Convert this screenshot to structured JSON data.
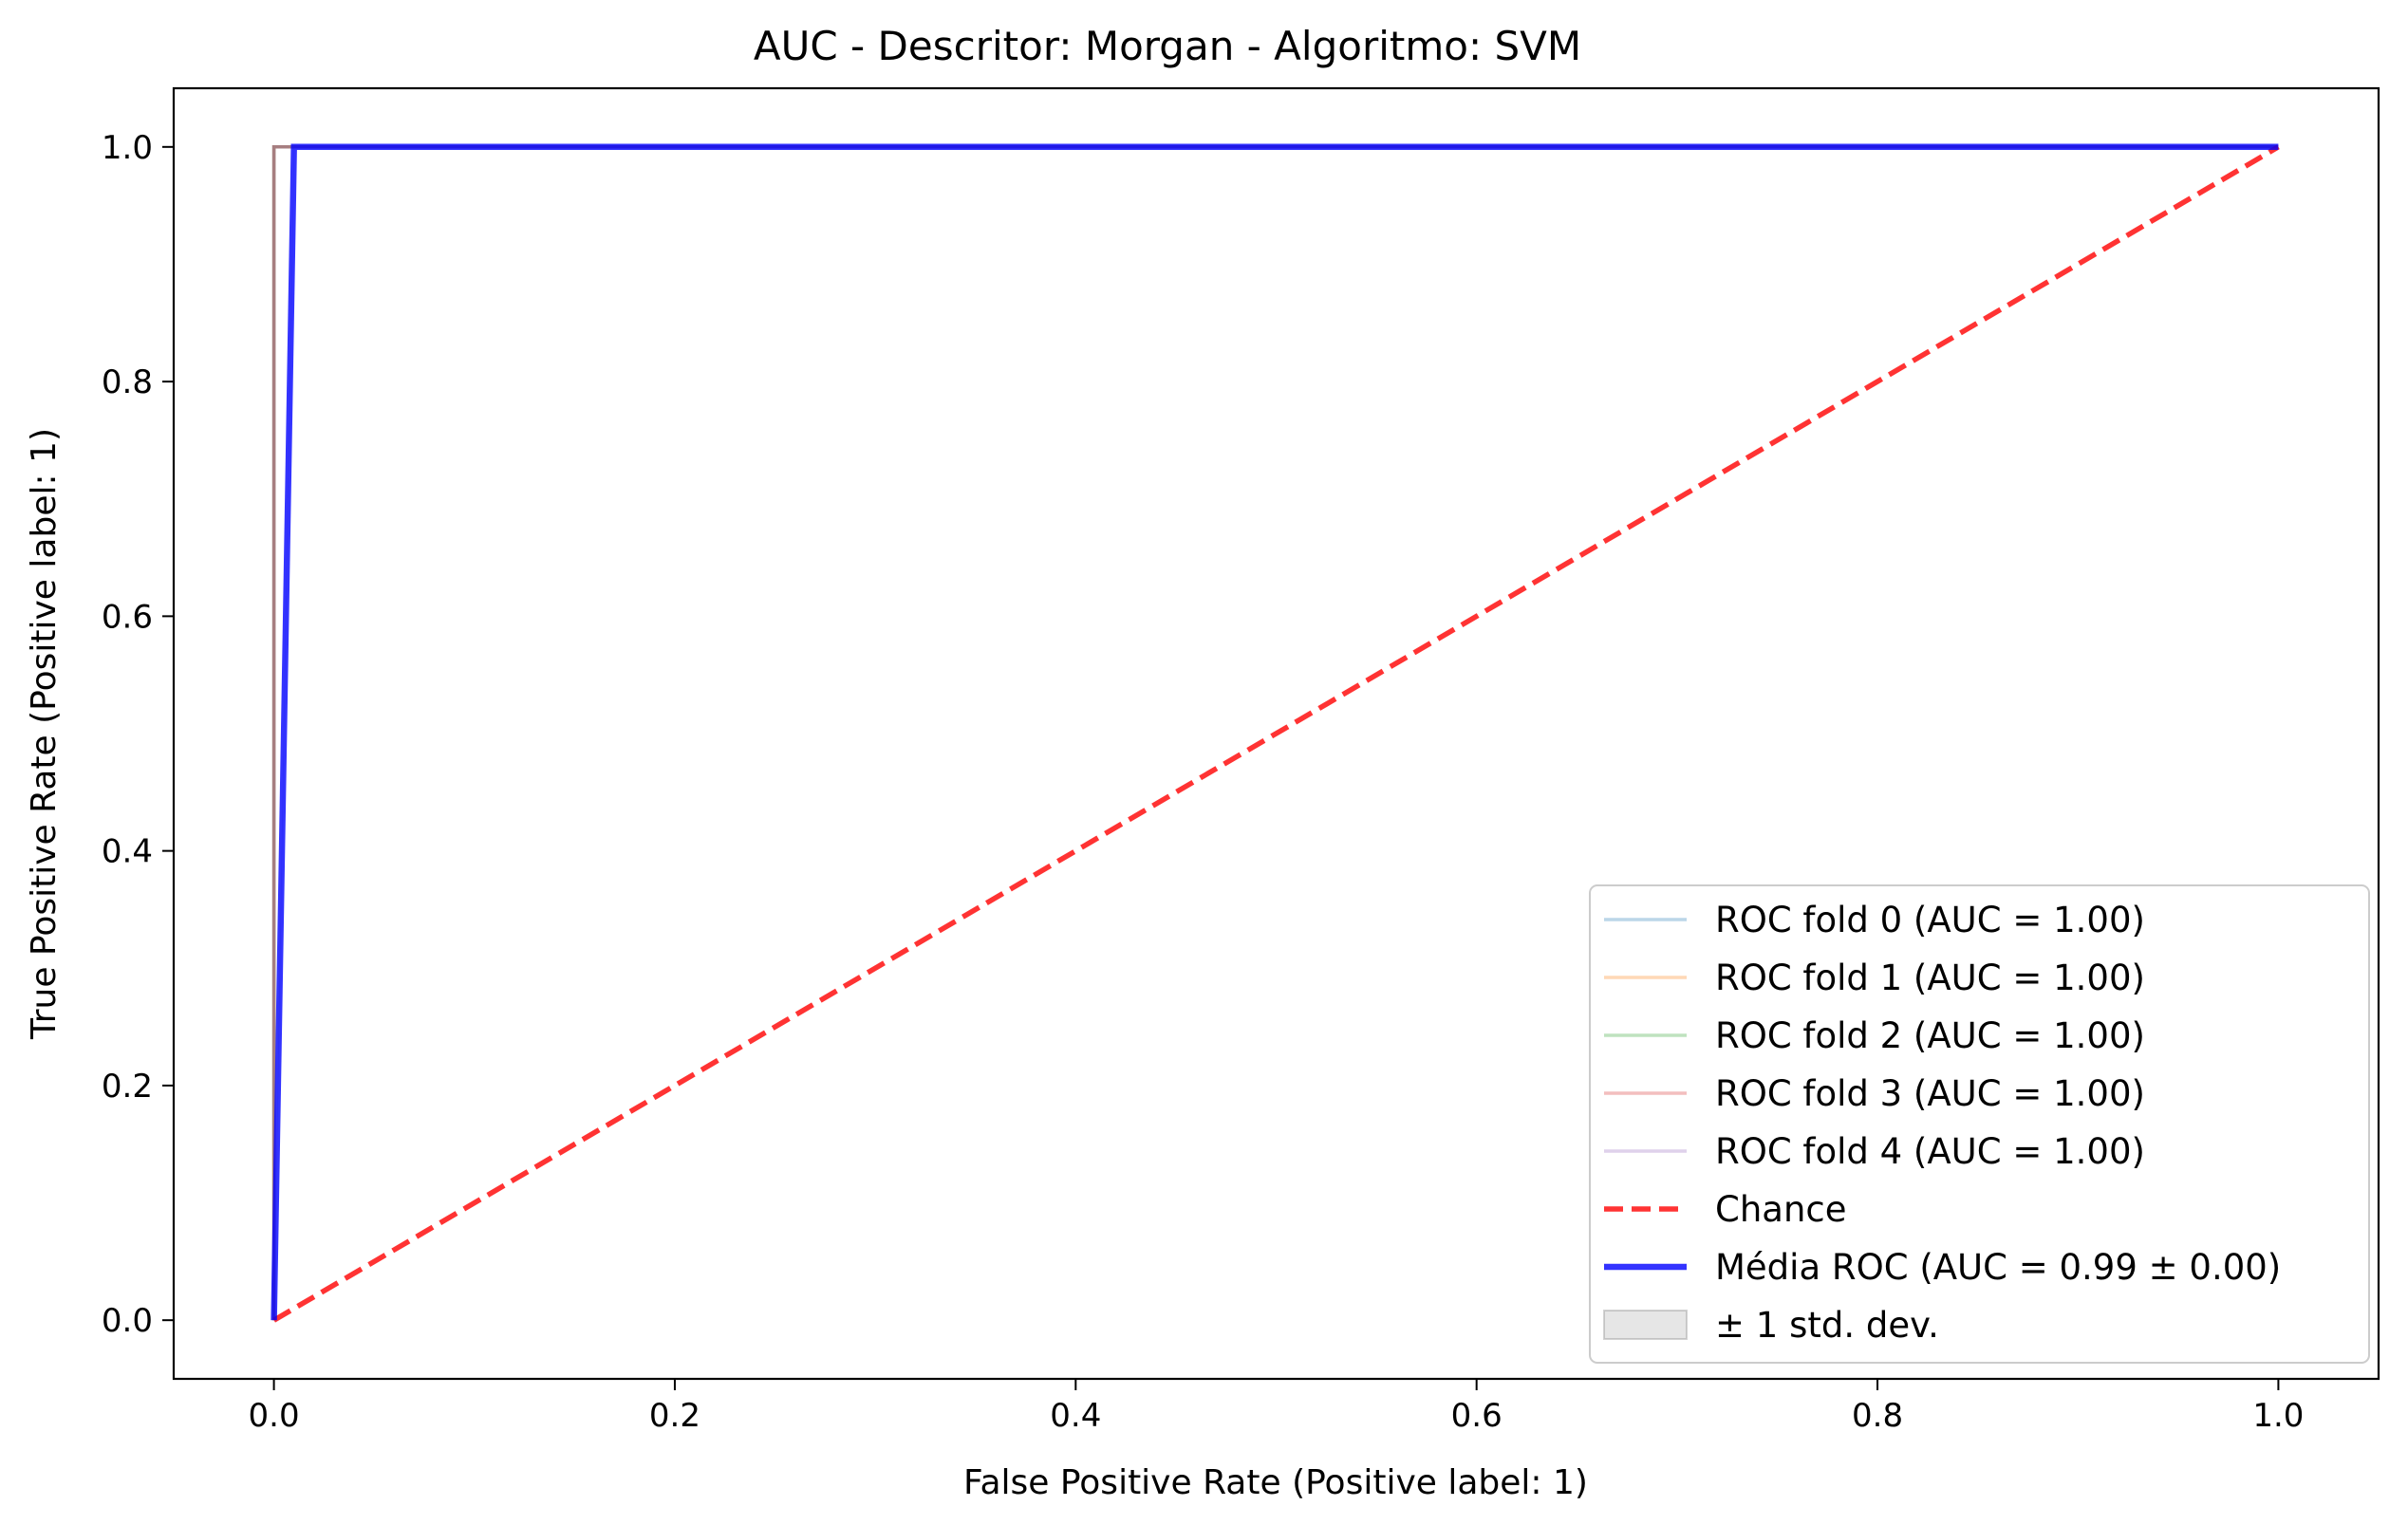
{
  "chart_data": {
    "type": "line",
    "title": "AUC - Descritor: Morgan - Algoritmo: SVM",
    "xlabel": "False Positive Rate (Positive label: 1)",
    "ylabel": "True Positive Rate (Positive label: 1)",
    "xlim": [
      -0.05,
      1.05
    ],
    "ylim": [
      -0.05,
      1.05
    ],
    "xticks": [
      0.0,
      0.2,
      0.4,
      0.6,
      0.8,
      1.0
    ],
    "yticks": [
      0.0,
      0.2,
      0.4,
      0.6,
      0.8,
      1.0
    ],
    "xtick_labels": [
      "0.0",
      "0.2",
      "0.4",
      "0.6",
      "0.8",
      "1.0"
    ],
    "ytick_labels": [
      "0.0",
      "0.2",
      "0.4",
      "0.6",
      "0.8",
      "1.0"
    ],
    "grid": false,
    "legend_position": "lower-right",
    "series": [
      {
        "name": "ROC fold 0 (AUC = 1.00)",
        "kind": "fold",
        "color": "#1f77b4",
        "opacity": 0.3,
        "x": [
          0.0,
          0.0,
          1.0
        ],
        "y": [
          0.0,
          1.0,
          1.0
        ]
      },
      {
        "name": "ROC fold 1 (AUC = 1.00)",
        "kind": "fold",
        "color": "#ff7f0e",
        "opacity": 0.3,
        "x": [
          0.0,
          0.0,
          1.0
        ],
        "y": [
          0.0,
          1.0,
          1.0
        ]
      },
      {
        "name": "ROC fold 2 (AUC = 1.00)",
        "kind": "fold",
        "color": "#2ca02c",
        "opacity": 0.3,
        "x": [
          0.0,
          0.0,
          1.0
        ],
        "y": [
          0.0,
          1.0,
          1.0
        ]
      },
      {
        "name": "ROC fold 3 (AUC = 1.00)",
        "kind": "fold",
        "color": "#d62728",
        "opacity": 0.3,
        "x": [
          0.0,
          0.0,
          1.0
        ],
        "y": [
          0.0,
          1.0,
          1.0
        ]
      },
      {
        "name": "ROC fold 4 (AUC = 1.00)",
        "kind": "fold",
        "color": "#9467bd",
        "opacity": 0.3,
        "x": [
          0.0,
          0.0,
          1.0
        ],
        "y": [
          0.0,
          1.0,
          1.0
        ]
      },
      {
        "name": "Chance",
        "kind": "chance",
        "color": "#ff0000",
        "opacity": 0.8,
        "dashed": true,
        "x": [
          0.0,
          1.0
        ],
        "y": [
          0.0,
          1.0
        ]
      },
      {
        "name": "Média ROC (AUC = 0.99 ± 0.00)",
        "kind": "mean",
        "color": "#0000ff",
        "opacity": 0.8,
        "x": [
          0.0,
          0.01,
          1.0
        ],
        "y": [
          0.0,
          1.0,
          1.0
        ]
      },
      {
        "name": "± 1 std. dev.",
        "kind": "band",
        "color": "#808080",
        "opacity": 0.2,
        "x": [
          0.0,
          0.01,
          1.0
        ],
        "y": [
          0.0,
          1.0,
          1.0
        ]
      }
    ]
  }
}
